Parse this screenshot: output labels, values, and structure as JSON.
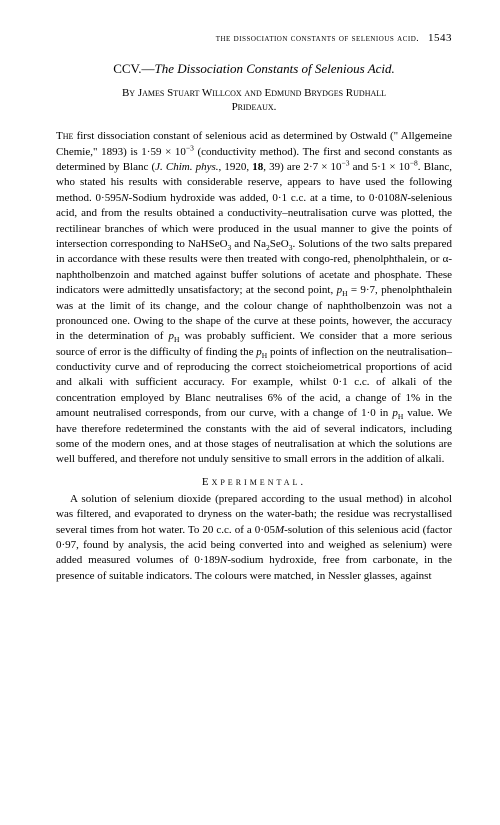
{
  "runningHead": {
    "text": "the dissociation constants of selenious acid.",
    "pageNo": "1543"
  },
  "title": {
    "roman": "CCV.—",
    "italic": "The Dissociation Constants of Selenious Acid."
  },
  "byline": {
    "line1": "By James Stuart Willcox and Edmund Brydges Rudhall",
    "line2": "Prideaux."
  },
  "paragraph1_parts": {
    "first": "The",
    "a": " first dissociation constant of selenious acid as determined by Ostwald (\" Allgemeine Chemie,\" 1893) is 1·59 × 10",
    "exp1": "−3",
    "b": " (conductivity method). The first and second constants as determined by Blanc (",
    "journal": "J. Chim. phys.",
    "c": ", 1920, ",
    "vol": "18",
    "d": ", 39) are 2·7 × 10",
    "exp2": "−3",
    "e": " and 5·1 × 10",
    "exp3": "−8",
    "f": ". Blanc, who stated his results with considerable reserve, appears to have used the following method. 0·595",
    "N1": "N",
    "g": "-Sodium hydroxide was added, 0·1 c.c. at a time, to 0·0108",
    "N2": "N",
    "h": "-selenious acid, and from the results obtained a conductivity–neutralisation curve was plotted, the rectilinear branches of which were produced in the usual manner to give the points of intersection corresponding to NaHSeO",
    "sub1": "3",
    "i": " and Na",
    "sub2": "2",
    "j": "SeO",
    "sub3": "3",
    "k": ". Solutions of the two salts prepared in accordance with these results were then treated with congo-red, phenolphthalein, or α-naphtholbenzoin and matched against buffer solutions of acetate and phosphate. These indicators were admittedly unsatisfactory; at the second point, ",
    "pH1": "p",
    "pH1sub": "H",
    "l": " = 9·7, phenolphthalein was at the limit of its change, and the colour change of naphtholbenzoin was not a pronounced one. Owing to the shape of the curve at these points, however, the accuracy in the determination of ",
    "pH2": "p",
    "pH2sub": "H",
    "m": " was probably sufficient. We consider that a more serious source of error is the difficulty of finding the ",
    "pH3": "p",
    "pH3sub": "H",
    "n": " points of inflection on the neutralisation–conductivity curve and of reproducing the correct stoicheiometrical proportions of acid and alkali with sufficient accuracy. For example, whilst 0·1 c.c. of alkali of the concentration employed by Blanc neutralises 6% of the acid, a change of 1% in the amount neutralised corresponds, from our curve, with a change of 1·0 in ",
    "pH4": "p",
    "pH4sub": "H",
    "o": " value. We have therefore redetermined the constants with the aid of several indicators, including some of the modern ones, and at those stages of neutralisation at which the solutions are well buffered, and therefore not unduly sensitive to small errors in the addition of alkali."
  },
  "sectionHead": "Experimental.",
  "paragraph2_parts": {
    "a": "A solution of selenium dioxide (prepared according to the usual method) in alcohol was filtered, and evaporated to dryness on the water-bath; the residue was recrystallised several times from hot water. To 20 c.c. of a 0·05",
    "M": "M",
    "b": "-solution of this selenious acid (factor 0·97, found by analysis, the acid being converted into and weighed as selenium) were added measured volumes of 0·189",
    "N": "N",
    "c": "-sodium hydroxide, free from carbonate, in the presence of suitable indicators. The colours were matched, in Nessler glasses, against"
  }
}
